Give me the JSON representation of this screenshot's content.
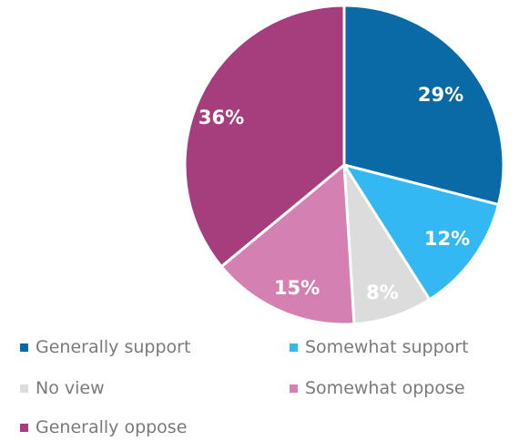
{
  "chart_data": {
    "type": "pie",
    "slices": [
      {
        "label": "Generally support",
        "value": 29,
        "display": "29%",
        "color": "#0a6aa6"
      },
      {
        "label": "Somewhat support",
        "value": 12,
        "display": "12%",
        "color": "#33b8f4"
      },
      {
        "label": "No view",
        "value": 8,
        "display": "8%",
        "color": "#dcdcdc"
      },
      {
        "label": "Somewhat oppose",
        "value": 15,
        "display": "15%",
        "color": "#d580b2"
      },
      {
        "label": "Generally oppose",
        "value": 36,
        "display": "36%",
        "color": "#a63d7c"
      }
    ],
    "start": "12 o'clock, clockwise",
    "legend_position": "bottom"
  }
}
